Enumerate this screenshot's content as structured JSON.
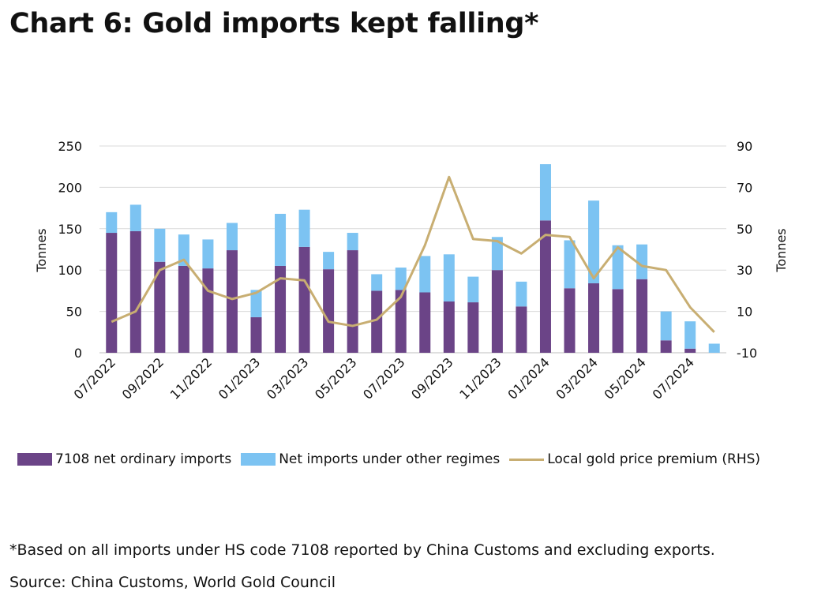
{
  "title": "Chart 6: Gold imports kept falling*",
  "footnote": "*Based on all imports under HS code 7108 reported by China Customs and excluding exports.",
  "source": "Source: China Customs, World Gold Council",
  "colors": {
    "ordinary": "#6b4487",
    "other": "#7cc3f2",
    "premium": "#c8ae72",
    "grid": "#d9d9d9"
  },
  "chart_data": {
    "type": "bar",
    "stacked": true,
    "categories": [
      "07/2022",
      "08/2022",
      "09/2022",
      "10/2022",
      "11/2022",
      "12/2022",
      "01/2023",
      "02/2023",
      "03/2023",
      "04/2023",
      "05/2023",
      "06/2023",
      "07/2023",
      "08/2023",
      "09/2023",
      "10/2023",
      "11/2023",
      "12/2023",
      "01/2024",
      "02/2024",
      "03/2024",
      "04/2024",
      "05/2024",
      "06/2024",
      "07/2024",
      "08/2024"
    ],
    "x_tick_labels": [
      "07/2022",
      "09/2022",
      "11/2022",
      "01/2023",
      "03/2023",
      "05/2023",
      "07/2023",
      "09/2023",
      "11/2023",
      "01/2024",
      "03/2024",
      "05/2024",
      "07/2024"
    ],
    "series": [
      {
        "name": "7108 net ordinary imports",
        "type": "bar",
        "axis": "left",
        "values": [
          145,
          147,
          110,
          105,
          102,
          124,
          43,
          105,
          128,
          101,
          124,
          75,
          76,
          73,
          62,
          61,
          100,
          56,
          160,
          78,
          84,
          77,
          89,
          15,
          5,
          0
        ]
      },
      {
        "name": "Net imports under other regimes",
        "type": "bar",
        "axis": "left",
        "values": [
          25,
          32,
          40,
          38,
          35,
          33,
          33,
          63,
          45,
          21,
          21,
          20,
          27,
          44,
          57,
          31,
          40,
          30,
          68,
          58,
          100,
          53,
          42,
          35,
          33,
          11
        ]
      },
      {
        "name": "Local gold price premium (RHS)",
        "type": "line",
        "axis": "right",
        "values": [
          5,
          10,
          30,
          35,
          20,
          16,
          19,
          26,
          25,
          5,
          3,
          6,
          17,
          42,
          75,
          45,
          44,
          38,
          47,
          46,
          26,
          41,
          32,
          30,
          12,
          0
        ]
      }
    ],
    "ylabel": "Tonnes",
    "y2label": "Tonnes",
    "ylim": [
      0,
      250
    ],
    "y2lim": [
      -10,
      90
    ],
    "yticks": [
      0,
      50,
      100,
      150,
      200,
      250
    ],
    "y2ticks": [
      -10,
      10,
      30,
      50,
      70,
      90
    ],
    "grid": true,
    "legend_position": "bottom"
  }
}
